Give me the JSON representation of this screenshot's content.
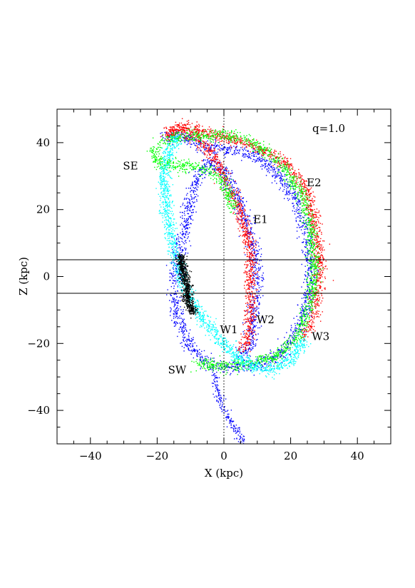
{
  "chart_data": {
    "type": "scatter",
    "title": "",
    "xlabel": "X (kpc)",
    "ylabel": "Z (kpc)",
    "xlim": [
      -50,
      50
    ],
    "ylim": [
      -50,
      50
    ],
    "grid": false,
    "xticks": [
      -40,
      -20,
      0,
      20,
      40
    ],
    "yticks": [
      -40,
      -20,
      0,
      20,
      40
    ],
    "xtick_labels": [
      "−40",
      "−20",
      "0",
      "20",
      "40"
    ],
    "ytick_labels": [
      "−40",
      "−20",
      "0",
      "20",
      "40"
    ],
    "parameter_label": "q=1.0",
    "reference_lines": {
      "vertical_x": 0,
      "horizontal_z": [
        5,
        -5
      ]
    },
    "annotations": [
      {
        "text": "SE",
        "x": -28,
        "z": 32
      },
      {
        "text": "E1",
        "x": 11,
        "z": 16
      },
      {
        "text": "E2",
        "x": 27,
        "z": 27
      },
      {
        "text": "W1",
        "x": 1.5,
        "z": -17
      },
      {
        "text": "W2",
        "x": 12.5,
        "z": -14
      },
      {
        "text": "W3",
        "x": 29,
        "z": -19
      },
      {
        "text": "SW",
        "x": -14,
        "z": -29
      }
    ],
    "series": [
      {
        "color": "#0000ff",
        "path": [
          [
            5,
            -24
          ],
          [
            8,
            -21
          ],
          [
            9,
            -12
          ],
          [
            10,
            0
          ],
          [
            9,
            8
          ],
          [
            7,
            16
          ],
          [
            4,
            24
          ],
          [
            0,
            31
          ],
          [
            -4,
            34
          ],
          [
            -8,
            30
          ],
          [
            -11,
            18
          ],
          [
            -13,
            8
          ],
          [
            -15,
            -4
          ],
          [
            -14,
            -13
          ],
          [
            -10,
            -21
          ],
          [
            -5,
            -26
          ],
          [
            0,
            -27
          ],
          [
            6,
            -27
          ],
          [
            13,
            -26
          ],
          [
            19,
            -21
          ],
          [
            24,
            -12
          ],
          [
            26,
            0
          ],
          [
            25,
            12
          ],
          [
            21,
            24
          ],
          [
            14,
            33
          ],
          [
            7,
            37
          ],
          [
            0,
            38
          ],
          [
            -6,
            39
          ],
          [
            -12,
            42
          ],
          [
            -18,
            42
          ]
        ],
        "spread": 1.7,
        "count": 2600
      },
      {
        "color": "#0000ff",
        "path": [
          [
            -3,
            -28
          ],
          [
            -2,
            -35
          ],
          [
            0,
            -40
          ],
          [
            3,
            -45
          ],
          [
            6,
            -50
          ]
        ],
        "spread": 1.0,
        "count": 180
      },
      {
        "color": "#ff0000",
        "path": [
          [
            5,
            -22
          ],
          [
            7,
            -20
          ],
          [
            8,
            -12
          ],
          [
            8,
            0
          ],
          [
            8,
            8
          ],
          [
            6,
            16
          ],
          [
            3,
            24
          ],
          [
            0,
            30
          ],
          [
            -4,
            37
          ],
          [
            -9,
            42
          ],
          [
            -14,
            44
          ],
          [
            -17,
            43
          ],
          [
            -17,
            42
          ],
          [
            -13,
            45
          ],
          [
            -8,
            44
          ],
          [
            -2,
            42
          ],
          [
            5,
            40
          ],
          [
            13,
            37
          ],
          [
            20,
            33
          ],
          [
            25,
            25
          ],
          [
            28,
            12
          ],
          [
            29,
            0
          ],
          [
            27,
            -12
          ],
          [
            24,
            -18
          ]
        ],
        "spread": 1.5,
        "count": 2200
      },
      {
        "color": "#00ff00",
        "path": [
          [
            -8,
            -26
          ],
          [
            0,
            -27
          ],
          [
            8,
            -26
          ],
          [
            16,
            -24
          ],
          [
            22,
            -18
          ],
          [
            26,
            -8
          ],
          [
            27,
            2
          ],
          [
            26,
            14
          ],
          [
            23,
            25
          ],
          [
            17,
            34
          ],
          [
            9,
            40
          ],
          [
            2,
            42
          ],
          [
            -5,
            42
          ],
          [
            -12,
            42
          ],
          [
            -17,
            41
          ],
          [
            -21,
            38
          ],
          [
            -20,
            34
          ],
          [
            -15,
            33
          ],
          [
            -10,
            33
          ],
          [
            -5,
            32
          ],
          [
            0,
            28
          ],
          [
            3,
            20
          ]
        ],
        "spread": 1.5,
        "count": 2000
      },
      {
        "color": "#00ffff",
        "path": [
          [
            -14,
            42
          ],
          [
            -17,
            35
          ],
          [
            -18,
            28
          ],
          [
            -17,
            18
          ],
          [
            -15,
            8
          ],
          [
            -12,
            -2
          ],
          [
            -8,
            -10
          ],
          [
            -3,
            -17
          ],
          [
            3,
            -23
          ],
          [
            9,
            -27
          ],
          [
            15,
            -28
          ],
          [
            20,
            -25
          ],
          [
            24,
            -19
          ]
        ],
        "spread": 1.6,
        "count": 1500
      },
      {
        "color": "#000000",
        "path": [
          [
            -13,
            6
          ],
          [
            -12,
            1
          ],
          [
            -11,
            -3
          ],
          [
            -11,
            -7
          ],
          [
            -9,
            -11
          ]
        ],
        "spread": 1.1,
        "count": 700
      }
    ]
  }
}
